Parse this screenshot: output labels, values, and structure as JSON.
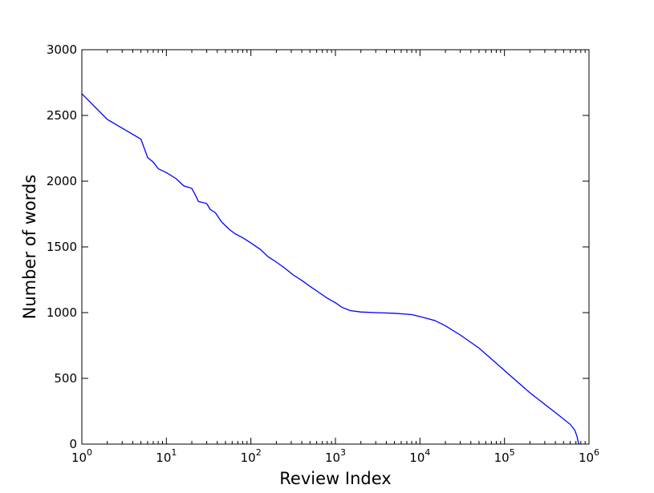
{
  "chart_data": {
    "type": "line",
    "title": "",
    "xlabel": "Review Index",
    "ylabel": "Number of words",
    "xscale": "log",
    "xlim": [
      1,
      1000000
    ],
    "ylim": [
      0,
      3000
    ],
    "grid": false,
    "legend": "none",
    "series": [
      {
        "color": "#0000ff",
        "points": [
          [
            1,
            2665
          ],
          [
            2,
            2470
          ],
          [
            5,
            2320
          ],
          [
            6,
            2180
          ],
          [
            7,
            2145
          ],
          [
            8,
            2095
          ],
          [
            10,
            2065
          ],
          [
            13,
            2020
          ],
          [
            16,
            1965
          ],
          [
            20,
            1945
          ],
          [
            22,
            1895
          ],
          [
            24,
            1845
          ],
          [
            30,
            1830
          ],
          [
            33,
            1785
          ],
          [
            38,
            1760
          ],
          [
            45,
            1690
          ],
          [
            55,
            1635
          ],
          [
            65,
            1600
          ],
          [
            80,
            1570
          ],
          [
            100,
            1530
          ],
          [
            130,
            1480
          ],
          [
            160,
            1425
          ],
          [
            200,
            1385
          ],
          [
            250,
            1340
          ],
          [
            320,
            1285
          ],
          [
            400,
            1245
          ],
          [
            500,
            1200
          ],
          [
            650,
            1150
          ],
          [
            800,
            1110
          ],
          [
            1000,
            1075
          ],
          [
            1200,
            1040
          ],
          [
            1500,
            1015
          ],
          [
            2000,
            1005
          ],
          [
            3000,
            1000
          ],
          [
            5000,
            995
          ],
          [
            8000,
            985
          ],
          [
            10000,
            970
          ],
          [
            15000,
            940
          ],
          [
            20000,
            900
          ],
          [
            30000,
            830
          ],
          [
            50000,
            730
          ],
          [
            100000,
            560
          ],
          [
            200000,
            390
          ],
          [
            400000,
            240
          ],
          [
            600000,
            150
          ],
          [
            680000,
            105
          ],
          [
            720000,
            60
          ],
          [
            750000,
            10
          ],
          [
            760000,
            0
          ]
        ]
      }
    ],
    "yticks": [
      0,
      500,
      1000,
      1500,
      2000,
      2500,
      3000
    ],
    "xticks": [
      {
        "value": 1,
        "base": "10",
        "exp": "0"
      },
      {
        "value": 10,
        "base": "10",
        "exp": "1"
      },
      {
        "value": 100,
        "base": "10",
        "exp": "2"
      },
      {
        "value": 1000,
        "base": "10",
        "exp": "3"
      },
      {
        "value": 10000,
        "base": "10",
        "exp": "4"
      },
      {
        "value": 100000,
        "base": "10",
        "exp": "5"
      },
      {
        "value": 1000000,
        "base": "10",
        "exp": "6"
      }
    ]
  }
}
